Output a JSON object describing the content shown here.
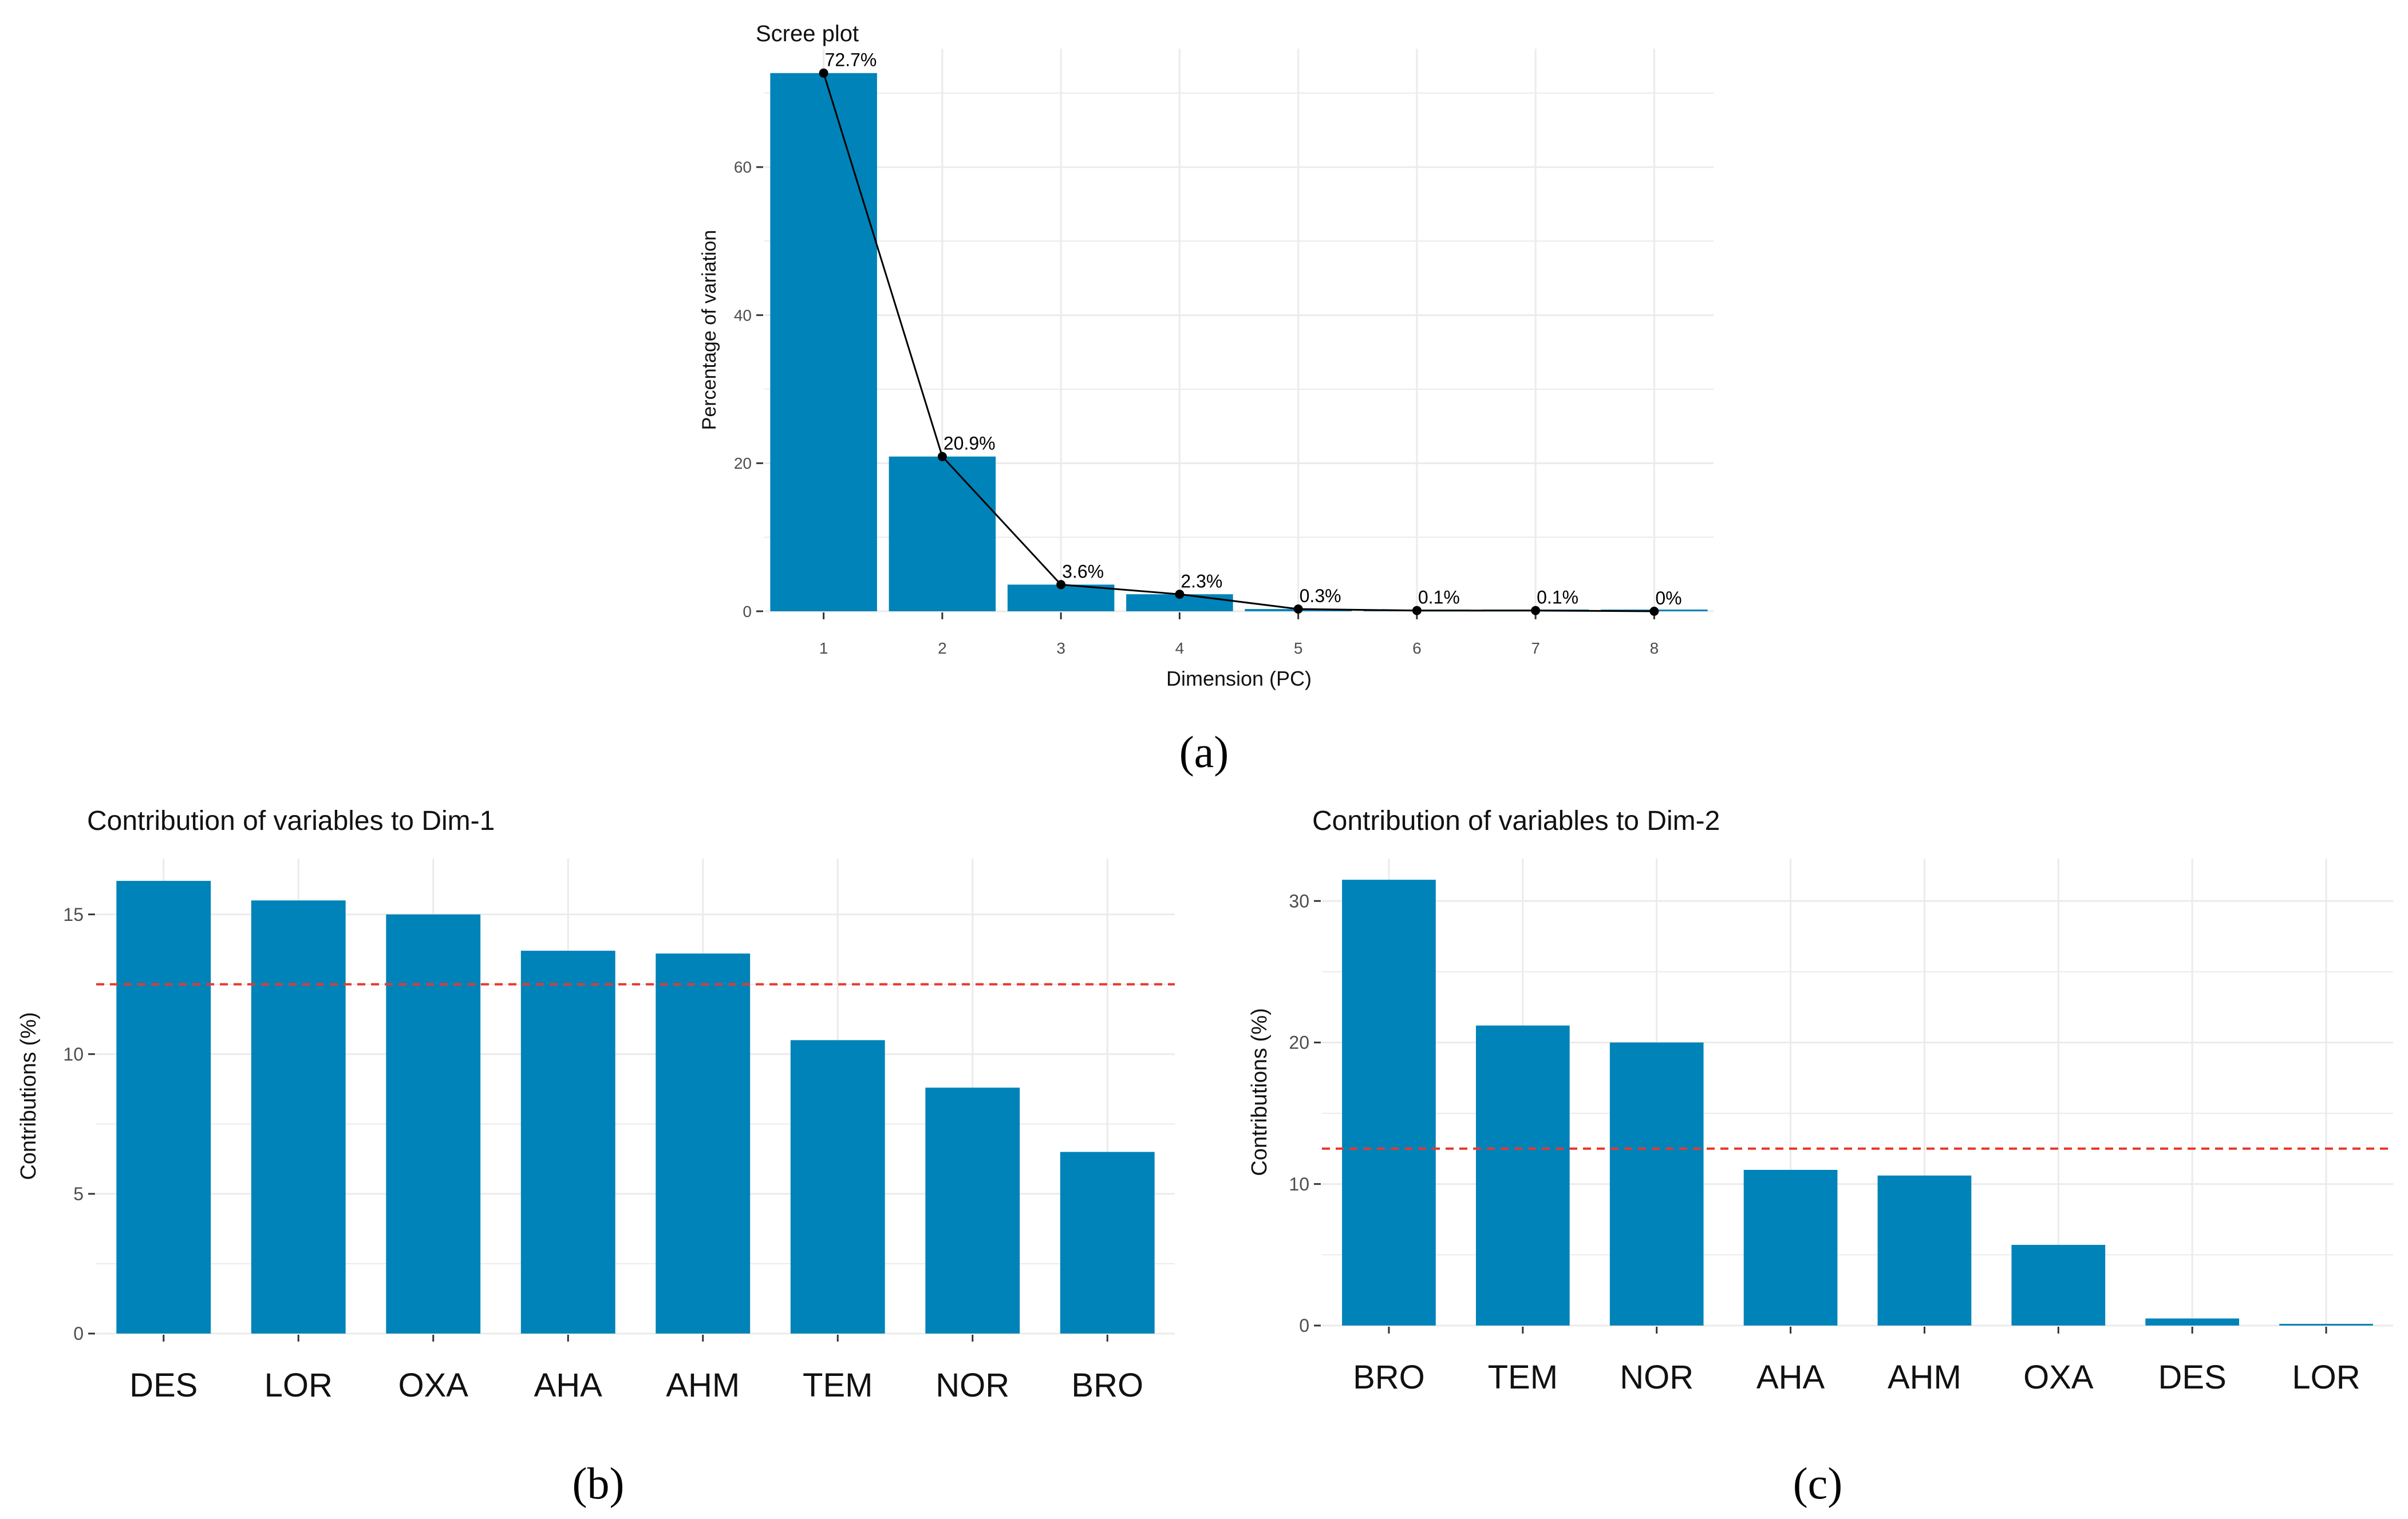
{
  "panels": {
    "a": "(a)",
    "b": "(b)",
    "c": "(c)"
  },
  "colors": {
    "bar": "#0083b8",
    "line": "#000000",
    "reference_line": "#e8382f",
    "grid": "#ebebeb",
    "axis_text": "#4d4d4d"
  },
  "chart_data": [
    {
      "id": "scree",
      "type": "bar",
      "title": "Scree plot",
      "xlabel": "Dimension (PC)",
      "ylabel": "Percentage of variation",
      "categories": [
        "1",
        "2",
        "3",
        "4",
        "5",
        "6",
        "7",
        "8"
      ],
      "values": [
        72.7,
        20.9,
        3.6,
        2.3,
        0.3,
        0.1,
        0.1,
        0.0
      ],
      "value_labels": [
        "72.7%",
        "20.9%",
        "3.6%",
        "2.3%",
        "0.3%",
        "0.1%",
        "0.1%",
        "0%"
      ],
      "overlay": "line with points",
      "ylim": [
        0,
        76
      ],
      "yticks": [
        0,
        20,
        40,
        60
      ],
      "grid": true
    },
    {
      "id": "dim1",
      "type": "bar",
      "title": "Contribution of variables to Dim-1",
      "xlabel": "",
      "ylabel": "Contributions (%)",
      "categories": [
        "DES",
        "LOR",
        "OXA",
        "AHA",
        "AHM",
        "TEM",
        "NOR",
        "BRO"
      ],
      "values": [
        16.2,
        15.5,
        15.0,
        13.7,
        13.6,
        10.5,
        8.8,
        6.5
      ],
      "reference_line": 12.5,
      "ylim": [
        0,
        17
      ],
      "yticks": [
        0,
        5,
        10,
        15
      ],
      "grid": true
    },
    {
      "id": "dim2",
      "type": "bar",
      "title": "Contribution of variables to Dim-2",
      "xlabel": "",
      "ylabel": "Contributions (%)",
      "categories": [
        "BRO",
        "TEM",
        "NOR",
        "AHA",
        "AHM",
        "OXA",
        "DES",
        "LOR"
      ],
      "values": [
        31.5,
        21.2,
        20.0,
        11.0,
        10.6,
        5.7,
        0.5,
        0.1
      ],
      "reference_line": 12.5,
      "ylim": [
        0,
        33
      ],
      "yticks": [
        0,
        10,
        20,
        30
      ],
      "grid": true
    }
  ]
}
